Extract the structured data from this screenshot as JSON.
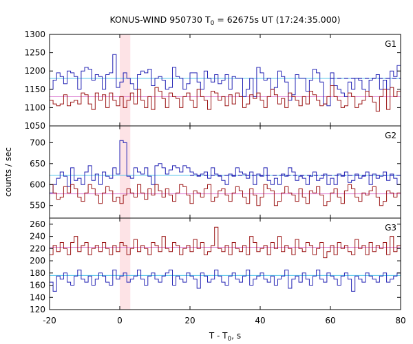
{
  "chart_data": {
    "type": "line",
    "title": "KONUS-WIND 950730 T",
    "title_sub": "0",
    "title_rest": " = 62675s UT (17:24:35.000)",
    "xlabel": "T - T",
    "xlabel_sub": "0",
    "xlabel_rest": ", s",
    "ylabel": "counts / sec",
    "xlim": [
      -20,
      80
    ],
    "xticks": [
      "-20",
      "0",
      "20",
      "40",
      "60",
      "80"
    ],
    "xtick_values": [
      -20,
      0,
      20,
      40,
      60,
      80
    ],
    "highlight_interval": [
      0,
      3
    ],
    "colors": {
      "blue": "#2323b4",
      "red": "#9b1414",
      "cyan": "#4fc3e8",
      "pink": "#e08ad6",
      "highlight": "#fde3e6"
    },
    "panels": [
      {
        "label": "G1",
        "ylim": [
          1050,
          1300
        ],
        "yticks": [
          "1050",
          "1100",
          "1150",
          "1200",
          "1250",
          "1300"
        ],
        "ytick_values": [
          1050,
          1100,
          1150,
          1200,
          1250,
          1300
        ],
        "bg_blue": 1180,
        "bg_red": 1130,
        "series": [
          {
            "color": "blue",
            "x0": -20,
            "dx": 1.0,
            "values": [
              1150,
              1175,
              1195,
              1185,
              1165,
              1200,
              1195,
              1185,
              1150,
              1200,
              1210,
              1205,
              1175,
              1190,
              1185,
              1150,
              1190,
              1195,
              1245,
              1155,
              1170,
              1195,
              1180,
              1165,
              1150,
              1190,
              1200,
              1195,
              1205,
              1160,
              1180,
              1185,
              1175,
              1150,
              1155,
              1210,
              1185,
              1180,
              1150,
              1165,
              1195,
              1195,
              1170,
              1150,
              1200,
              1180,
              1170,
              1190,
              1165,
              1175,
              1190,
              1150,
              1185,
              1180,
              1180,
              1130,
              1150,
              1180,
              1130,
              1210,
              1195,
              1175,
              1180,
              1150,
              1155,
              1200,
              1185,
              1170,
              1120,
              1135,
              1190,
              1180,
              1180,
              1145,
              1175,
              1205,
              1195,
              1170,
              1110,
              1105,
              1195,
              1160,
              1150,
              1140,
              1130,
              1170,
              1150,
              1180,
              1175,
              1150,
              1145,
              1175,
              1180,
              1190,
              1150,
              1175,
              1150,
              1200,
              1185,
              1215
            ]
          },
          {
            "color": "red",
            "x0": -20,
            "dx": 1.0,
            "values": [
              1120,
              1110,
              1105,
              1110,
              1135,
              1105,
              1115,
              1120,
              1110,
              1140,
              1135,
              1110,
              1095,
              1140,
              1120,
              1135,
              1100,
              1140,
              1120,
              1105,
              1130,
              1100,
              1120,
              1140,
              1110,
              1150,
              1120,
              1100,
              1130,
              1095,
              1155,
              1145,
              1125,
              1100,
              1140,
              1130,
              1125,
              1100,
              1130,
              1140,
              1120,
              1100,
              1150,
              1130,
              1120,
              1095,
              1145,
              1140,
              1120,
              1130,
              1105,
              1135,
              1110,
              1140,
              1130,
              1100,
              1110,
              1135,
              1125,
              1140,
              1120,
              1100,
              1130,
              1150,
              1135,
              1110,
              1125,
              1100,
              1140,
              1130,
              1120,
              1105,
              1130,
              1110,
              1145,
              1135,
              1120,
              1105,
              1110,
              1130,
              1160,
              1130,
              1120,
              1100,
              1105,
              1140,
              1130,
              1100,
              1110,
              1120,
              1145,
              1130,
              1115,
              1090,
              1130,
              1150,
              1095,
              1155,
              1130,
              1145
            ]
          }
        ],
        "dashed": {
          "color": "blue",
          "value": 1180,
          "x_start": 60,
          "x_end": 80
        }
      },
      {
        "label": "G2",
        "ylim": [
          520,
          740
        ],
        "yticks": [
          "550",
          "600",
          "650",
          "700"
        ],
        "ytick_values": [
          550,
          600,
          650,
          700
        ],
        "bg_blue": 622,
        "bg_red": 578,
        "series": [
          {
            "color": "blue",
            "x0": -20,
            "dx": 1.0,
            "values": [
              580,
              600,
              615,
              630,
              620,
              595,
              640,
              610,
              615,
              600,
              630,
              645,
              610,
              625,
              600,
              630,
              620,
              615,
              640,
              625,
              705,
              700,
              620,
              615,
              640,
              630,
              625,
              640,
              620,
              600,
              645,
              650,
              640,
              625,
              635,
              645,
              640,
              630,
              645,
              640,
              630,
              625,
              620,
              625,
              630,
              615,
              640,
              625,
              620,
              610,
              600,
              625,
              620,
              640,
              630,
              625,
              615,
              630,
              600,
              625,
              620,
              640,
              610,
              600,
              615,
              600,
              625,
              620,
              640,
              630,
              610,
              620,
              615,
              600,
              620,
              630,
              610,
              615,
              625,
              600,
              615,
              600,
              625,
              620,
              630,
              605,
              610,
              625,
              615,
              620,
              630,
              600,
              625,
              615,
              620,
              630,
              610,
              625,
              615,
              600
            ]
          },
          {
            "color": "red",
            "x0": -20,
            "dx": 1.0,
            "values": [
              600,
              580,
              565,
              570,
              595,
              580,
              600,
              590,
              570,
              560,
              580,
              600,
              590,
              575,
              555,
              580,
              595,
              585,
              560,
              570,
              555,
              575,
              590,
              580,
              570,
              600,
              580,
              565,
              590,
              575,
              600,
              585,
              570,
              590,
              575,
              560,
              580,
              600,
              595,
              575,
              555,
              585,
              580,
              570,
              590,
              600,
              560,
              570,
              585,
              590,
              575,
              560,
              580,
              595,
              585,
              570,
              555,
              590,
              575,
              550,
              570,
              600,
              590,
              585,
              550,
              560,
              580,
              595,
              580,
              575,
              560,
              590,
              570,
              555,
              585,
              580,
              595,
              575,
              550,
              560,
              580,
              590,
              570,
              555,
              585,
              600,
              590,
              570,
              560,
              580,
              575,
              585,
              595,
              570,
              550,
              560,
              585,
              580,
              570,
              580
            ]
          }
        ],
        "dashed": {
          "color": "blue",
          "value": 622,
          "x_start": 20,
          "x_end": 80
        }
      },
      {
        "label": "G3",
        "ylim": [
          120,
          270
        ],
        "yticks": [
          "120",
          "140",
          "160",
          "180",
          "200",
          "220",
          "240",
          "260"
        ],
        "ytick_values": [
          120,
          140,
          160,
          180,
          200,
          220,
          240,
          260
        ],
        "bg_blue": 176,
        "bg_red": 222,
        "series": [
          {
            "color": "blue",
            "x0": -20,
            "dx": 1.0,
            "values": [
              165,
              150,
              175,
              170,
              180,
              165,
              160,
              175,
              185,
              170,
              165,
              175,
              160,
              170,
              180,
              175,
              165,
              160,
              185,
              170,
              175,
              180,
              165,
              170,
              175,
              185,
              170,
              160,
              175,
              180,
              170,
              165,
              175,
              180,
              185,
              160,
              175,
              170,
              165,
              180,
              175,
              170,
              155,
              180,
              175,
              165,
              170,
              185,
              175,
              165,
              160,
              175,
              180,
              170,
              165,
              175,
              185,
              160,
              170,
              175,
              180,
              170,
              165,
              175,
              160,
              170,
              175,
              185,
              155,
              170,
              175,
              165,
              180,
              170,
              160,
              175,
              185,
              170,
              165,
              180,
              175,
              170,
              160,
              175,
              180,
              170,
              150,
              175,
              170,
              165,
              180,
              175,
              170,
              165,
              175,
              180,
              165,
              170,
              175,
              180
            ]
          },
          {
            "color": "red",
            "x0": -20,
            "dx": 1.0,
            "values": [
              210,
              225,
              215,
              230,
              220,
              210,
              230,
              240,
              215,
              225,
              230,
              210,
              220,
              225,
              215,
              230,
              220,
              210,
              225,
              215,
              230,
              225,
              210,
              220,
              235,
              215,
              225,
              220,
              210,
              230,
              225,
              215,
              240,
              220,
              215,
              230,
              225,
              210,
              220,
              225,
              215,
              235,
              220,
              230,
              210,
              215,
              225,
              255,
              220,
              215,
              225,
              210,
              230,
              220,
              215,
              225,
              210,
              240,
              230,
              215,
              220,
              225,
              210,
              230,
              220,
              240,
              215,
              225,
              220,
              210,
              235,
              220,
              215,
              230,
              225,
              210,
              220,
              230,
              205,
              215,
              225,
              210,
              230,
              220,
              225,
              215,
              210,
              235,
              220,
              225,
              210,
              230,
              215,
              225,
              220,
              230,
              210,
              240,
              215,
              225
            ]
          }
        ],
        "dashed": null
      }
    ]
  }
}
